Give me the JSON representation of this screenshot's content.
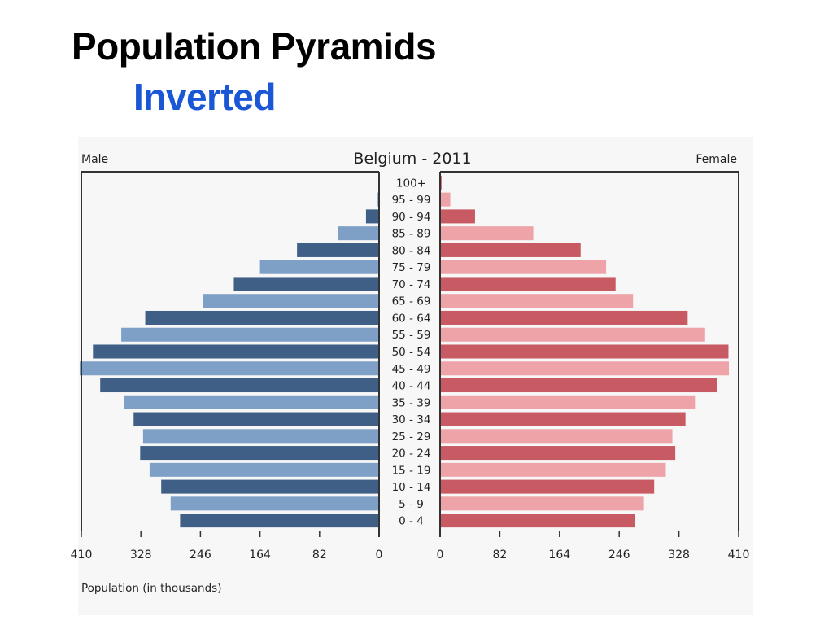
{
  "slide": {
    "title": "Population Pyramids",
    "subtitle": "Inverted",
    "subtitle_color": "#1a57d6"
  },
  "chart_data": {
    "type": "bar",
    "orientation": "horizontal-pyramid",
    "title": "Belgium - 2011",
    "left_label": "Male",
    "right_label": "Female",
    "xlabel": "Population (in thousands)",
    "xlim": [
      0,
      410
    ],
    "x_ticks": [
      0,
      82,
      164,
      246,
      328,
      410
    ],
    "categories": [
      "100+",
      "95 - 99",
      "90 - 94",
      "85 - 89",
      "80 - 84",
      "75 - 79",
      "70 - 74",
      "65 - 69",
      "60 - 64",
      "55 - 59",
      "50 - 54",
      "45 - 49",
      "40 - 44",
      "35 - 39",
      "30 - 34",
      "25 - 29",
      "20 - 24",
      "15 - 19",
      "10 - 14",
      "5 - 9",
      "0 - 4"
    ],
    "series": [
      {
        "name": "Male",
        "values": [
          0,
          2,
          18,
          56,
          113,
          164,
          200,
          243,
          322,
          355,
          394,
          415,
          384,
          351,
          338,
          325,
          329,
          316,
          300,
          287,
          274
        ]
      },
      {
        "name": "Female",
        "values": [
          2,
          14,
          48,
          128,
          193,
          228,
          241,
          265,
          340,
          364,
          396,
          410,
          380,
          350,
          337,
          319,
          323,
          310,
          294,
          280,
          268
        ]
      }
    ],
    "colors": {
      "male_dark": "#3f5f87",
      "male_light": "#7fa0c6",
      "female_dark": "#c75a62",
      "female_light": "#eea3a8"
    },
    "grid": false,
    "legend": "none"
  }
}
